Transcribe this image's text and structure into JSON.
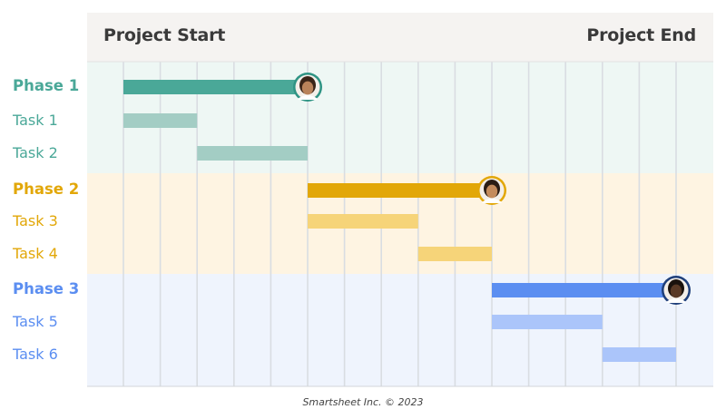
{
  "header": {
    "start_label": "Project Start",
    "end_label": "Project End"
  },
  "credit": "Smartsheet Inc. © 2023",
  "chart_data": {
    "type": "gantt",
    "timeline_columns": 16,
    "grid": true,
    "phases": [
      {
        "name": "Phase 1",
        "color": "#4aa898",
        "light_color": "#a3cdc4",
        "band_color": "#eef7f4",
        "start": 0,
        "end": 5,
        "avatar": "person-avatar",
        "tasks": [
          {
            "name": "Task 1",
            "start": 0,
            "end": 2
          },
          {
            "name": "Task 2",
            "start": 2,
            "end": 5
          }
        ]
      },
      {
        "name": "Phase 2",
        "color": "#e2a708",
        "light_color": "#f6d479",
        "band_color": "#fef4e2",
        "start": 5,
        "end": 10,
        "avatar": "person-avatar",
        "tasks": [
          {
            "name": "Task 3",
            "start": 5,
            "end": 8
          },
          {
            "name": "Task 4",
            "start": 8,
            "end": 10
          }
        ]
      },
      {
        "name": "Phase 3",
        "color": "#5b8ef1",
        "light_color": "#abc5fa",
        "band_color": "#eff4fd",
        "start": 10,
        "end": 15,
        "avatar": "person-avatar",
        "tasks": [
          {
            "name": "Task 5",
            "start": 10,
            "end": 13
          },
          {
            "name": "Task 6",
            "start": 13,
            "end": 15
          }
        ]
      }
    ]
  }
}
